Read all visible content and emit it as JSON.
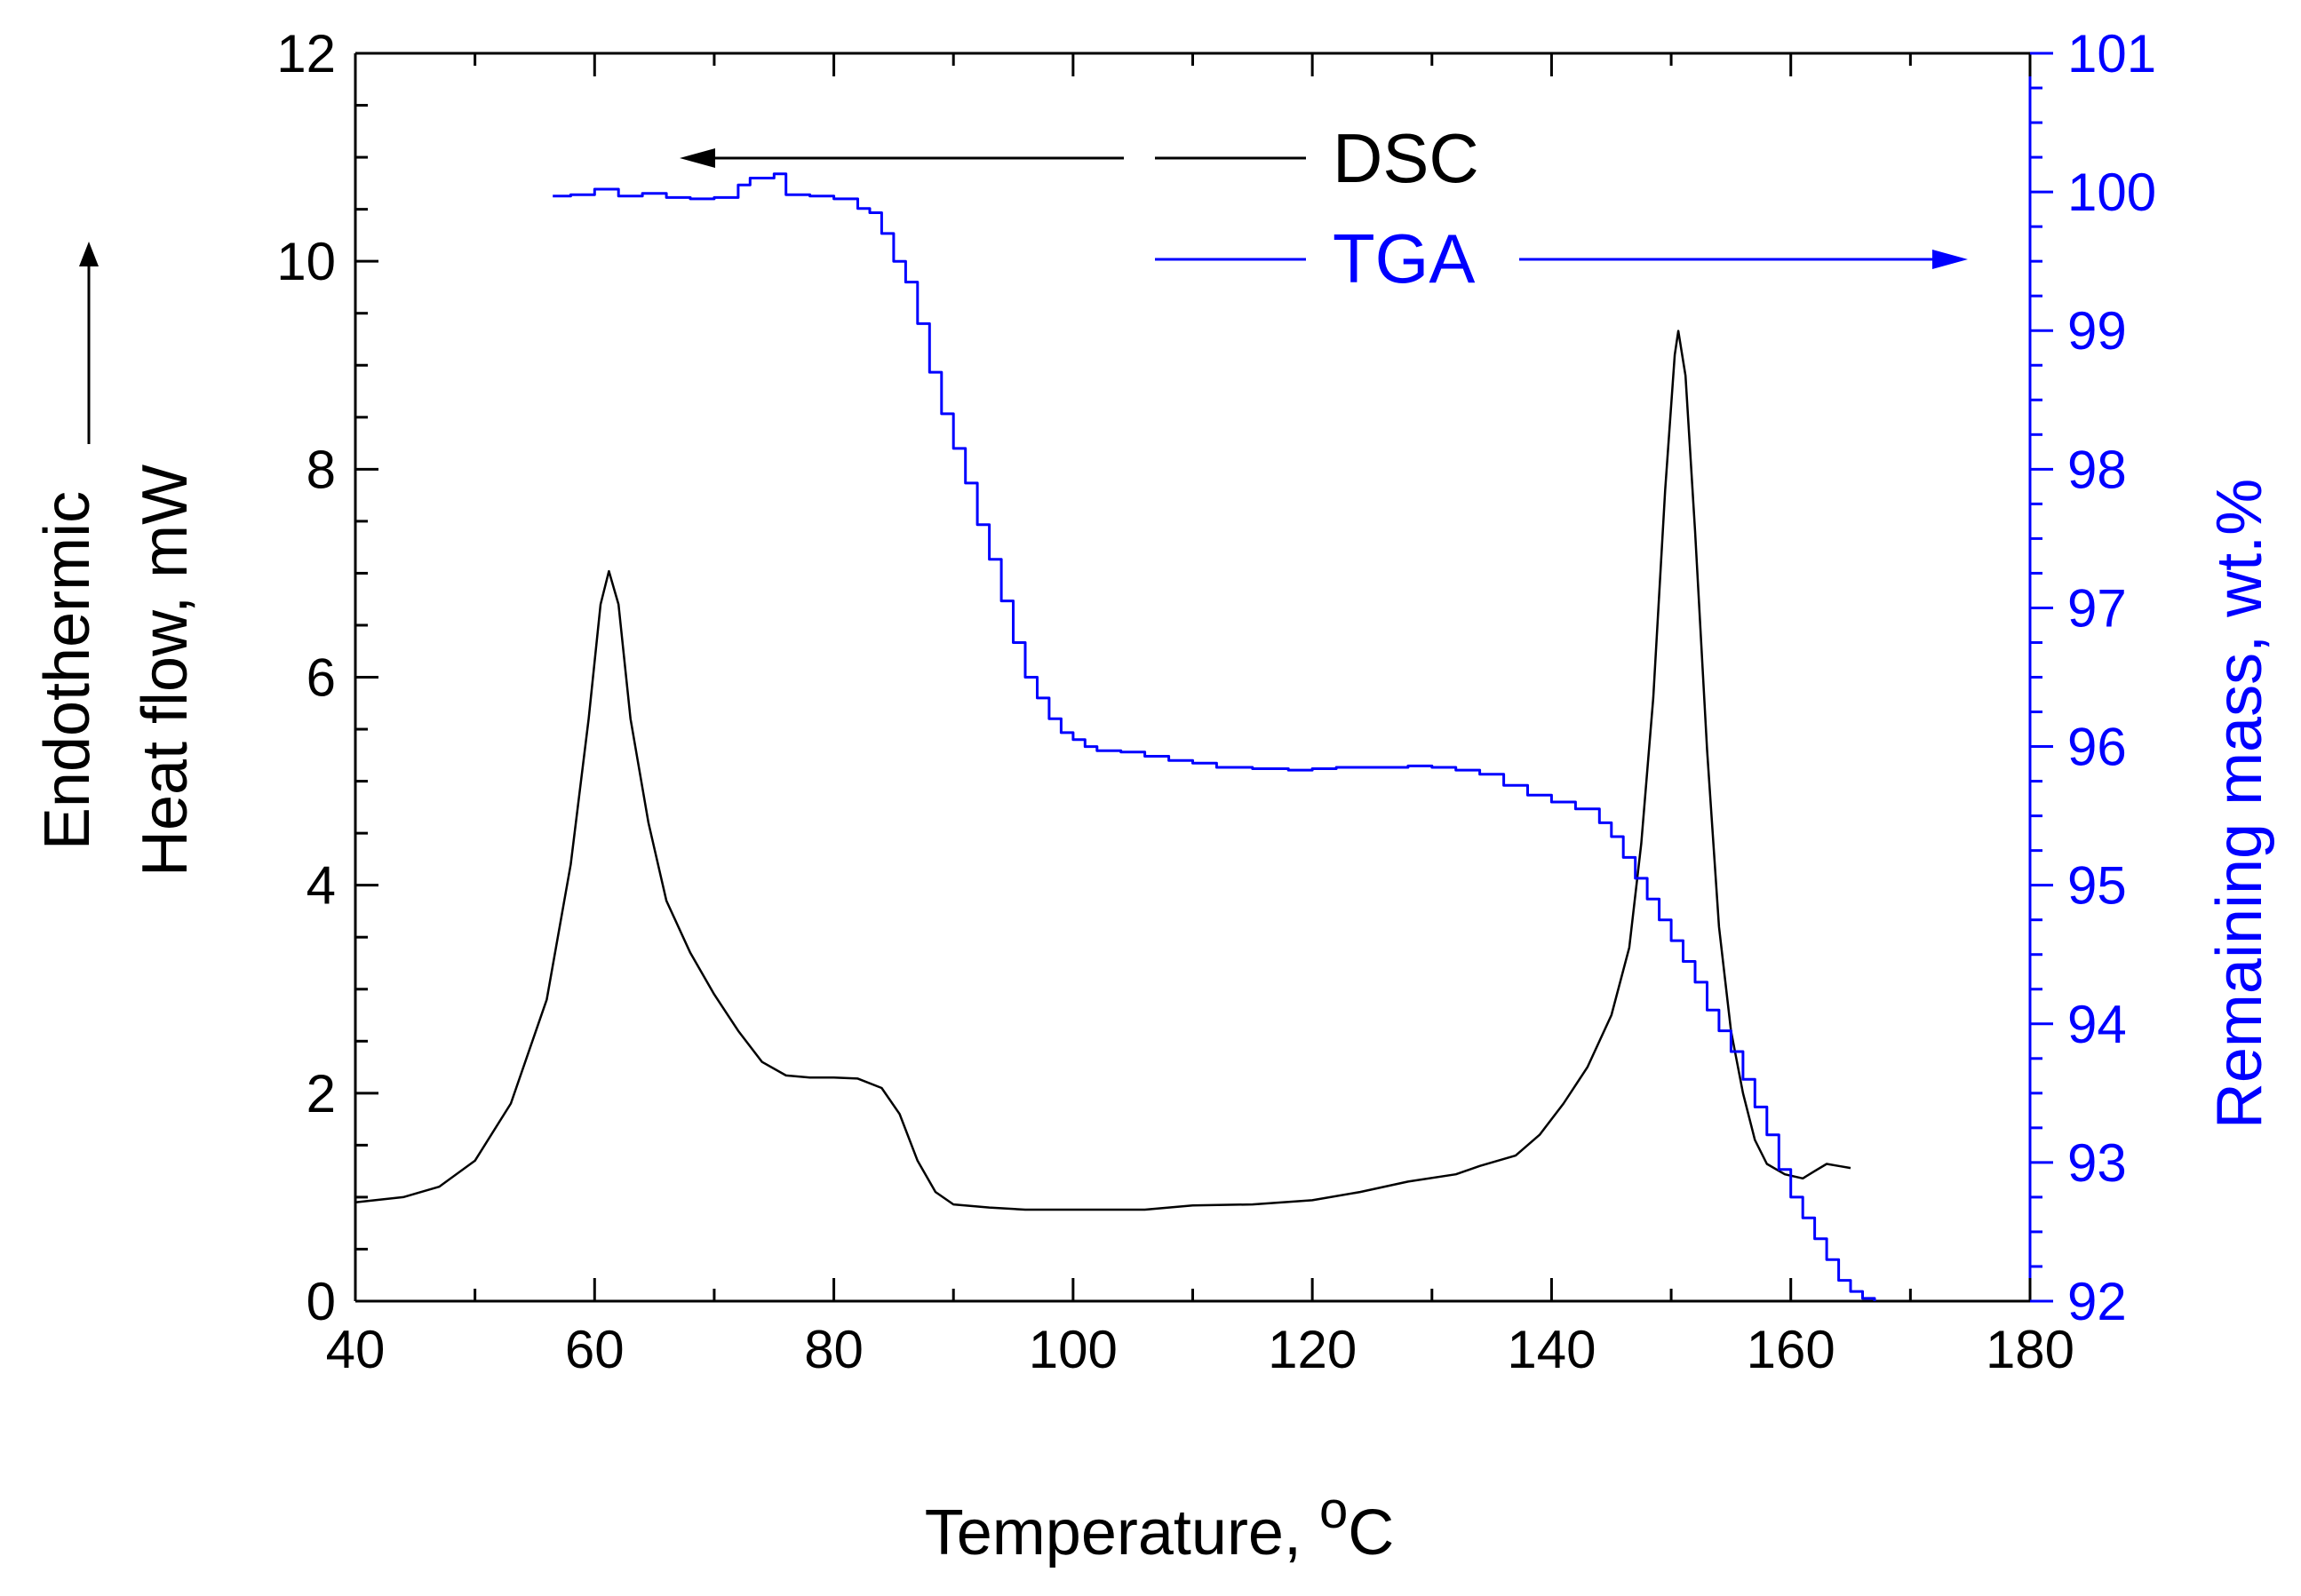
{
  "chart_data": {
    "type": "line",
    "x_axis": {
      "label_main": "Temperature, ",
      "label_sup": "o",
      "label_unit": "C",
      "range": [
        40,
        180
      ],
      "ticks": [
        40,
        60,
        80,
        100,
        120,
        140,
        160,
        180
      ]
    },
    "y_left": {
      "label_line1": "Endothermic",
      "label_line2": "Heat flow, mW",
      "range": [
        0,
        12
      ],
      "ticks": [
        0,
        2,
        4,
        6,
        8,
        10,
        12
      ],
      "color": "#000000"
    },
    "y_right": {
      "label": "Remaining mass, wt.%",
      "range": [
        92,
        101
      ],
      "ticks": [
        92,
        93,
        94,
        95,
        96,
        97,
        98,
        99,
        100,
        101
      ],
      "color": "#0000ff"
    },
    "legend": [
      {
        "name": "DSC",
        "color": "#000000",
        "arrow": "left",
        "axis": "left"
      },
      {
        "name": "TGA",
        "color": "#0000ff",
        "arrow": "right",
        "axis": "right"
      }
    ],
    "series": [
      {
        "name": "DSC",
        "axis": "left",
        "color": "#000000",
        "points": [
          [
            40,
            0.95
          ],
          [
            44,
            1.0
          ],
          [
            47,
            1.1
          ],
          [
            50,
            1.35
          ],
          [
            53,
            1.9
          ],
          [
            56,
            2.9
          ],
          [
            58,
            4.2
          ],
          [
            59.5,
            5.6
          ],
          [
            60.5,
            6.7
          ],
          [
            61.2,
            7.02
          ],
          [
            62,
            6.7
          ],
          [
            63,
            5.6
          ],
          [
            64.5,
            4.6
          ],
          [
            66,
            3.85
          ],
          [
            68,
            3.35
          ],
          [
            70,
            2.95
          ],
          [
            72,
            2.6
          ],
          [
            74,
            2.3
          ],
          [
            76,
            2.17
          ],
          [
            78,
            2.15
          ],
          [
            80,
            2.15
          ],
          [
            82,
            2.14
          ],
          [
            84,
            2.05
          ],
          [
            85.5,
            1.8
          ],
          [
            87,
            1.35
          ],
          [
            88.5,
            1.05
          ],
          [
            90,
            0.93
          ],
          [
            93,
            0.9
          ],
          [
            96,
            0.88
          ],
          [
            100,
            0.88
          ],
          [
            106,
            0.88
          ],
          [
            110,
            0.92
          ],
          [
            115,
            0.93
          ],
          [
            120,
            0.97
          ],
          [
            124,
            1.05
          ],
          [
            128,
            1.15
          ],
          [
            132,
            1.22
          ],
          [
            134,
            1.3
          ],
          [
            137,
            1.4
          ],
          [
            139,
            1.6
          ],
          [
            141,
            1.9
          ],
          [
            143,
            2.25
          ],
          [
            145,
            2.75
          ],
          [
            146.5,
            3.4
          ],
          [
            147.5,
            4.4
          ],
          [
            148.5,
            5.8
          ],
          [
            149.5,
            7.8
          ],
          [
            150.3,
            9.1
          ],
          [
            150.6,
            9.33
          ],
          [
            151.2,
            8.9
          ],
          [
            152,
            7.4
          ],
          [
            153,
            5.3
          ],
          [
            154,
            3.6
          ],
          [
            155,
            2.6
          ],
          [
            156,
            2.0
          ],
          [
            157,
            1.55
          ],
          [
            158,
            1.32
          ],
          [
            159.5,
            1.22
          ],
          [
            161,
            1.18
          ],
          [
            162,
            1.25
          ],
          [
            163,
            1.32
          ],
          [
            164,
            1.3
          ],
          [
            165,
            1.28
          ]
        ]
      },
      {
        "name": "TGA",
        "axis": "right",
        "color": "#0000ff",
        "points": [
          [
            56.5,
            99.97
          ],
          [
            58,
            99.98
          ],
          [
            60,
            100.02
          ],
          [
            62,
            99.97
          ],
          [
            64,
            99.99
          ],
          [
            66,
            99.96
          ],
          [
            68,
            99.95
          ],
          [
            70,
            99.96
          ],
          [
            72,
            100.05
          ],
          [
            73,
            100.1
          ],
          [
            75,
            100.13
          ],
          [
            76,
            99.98
          ],
          [
            78,
            99.97
          ],
          [
            80,
            99.95
          ],
          [
            82,
            99.88
          ],
          [
            83,
            99.85
          ],
          [
            84,
            99.7
          ],
          [
            85,
            99.5
          ],
          [
            86,
            99.35
          ],
          [
            87,
            99.05
          ],
          [
            88,
            98.7
          ],
          [
            89,
            98.4
          ],
          [
            90,
            98.15
          ],
          [
            91,
            97.9
          ],
          [
            92,
            97.6
          ],
          [
            93,
            97.35
          ],
          [
            94,
            97.05
          ],
          [
            95,
            96.75
          ],
          [
            96,
            96.5
          ],
          [
            97,
            96.35
          ],
          [
            98,
            96.2
          ],
          [
            99,
            96.1
          ],
          [
            100,
            96.05
          ],
          [
            101,
            96.0
          ],
          [
            102,
            95.97
          ],
          [
            104,
            95.96
          ],
          [
            106,
            95.93
          ],
          [
            108,
            95.9
          ],
          [
            110,
            95.88
          ],
          [
            112,
            95.85
          ],
          [
            115,
            95.84
          ],
          [
            118,
            95.83
          ],
          [
            120,
            95.84
          ],
          [
            122,
            95.85
          ],
          [
            125,
            95.85
          ],
          [
            128,
            95.86
          ],
          [
            130,
            95.85
          ],
          [
            132,
            95.83
          ],
          [
            134,
            95.8
          ],
          [
            136,
            95.72
          ],
          [
            138,
            95.65
          ],
          [
            140,
            95.6
          ],
          [
            142,
            95.55
          ],
          [
            144,
            95.45
          ],
          [
            145,
            95.35
          ],
          [
            146,
            95.2
          ],
          [
            147,
            95.05
          ],
          [
            148,
            94.9
          ],
          [
            149,
            94.75
          ],
          [
            150,
            94.6
          ],
          [
            151,
            94.45
          ],
          [
            152,
            94.3
          ],
          [
            153,
            94.1
          ],
          [
            154,
            93.95
          ],
          [
            155,
            93.8
          ],
          [
            156,
            93.6
          ],
          [
            157,
            93.4
          ],
          [
            158,
            93.2
          ],
          [
            159,
            92.95
          ],
          [
            160,
            92.75
          ],
          [
            161,
            92.6
          ],
          [
            162,
            92.45
          ],
          [
            163,
            92.3
          ],
          [
            164,
            92.15
          ],
          [
            165,
            92.07
          ],
          [
            166,
            92.02
          ],
          [
            167,
            92.0
          ]
        ]
      }
    ]
  }
}
